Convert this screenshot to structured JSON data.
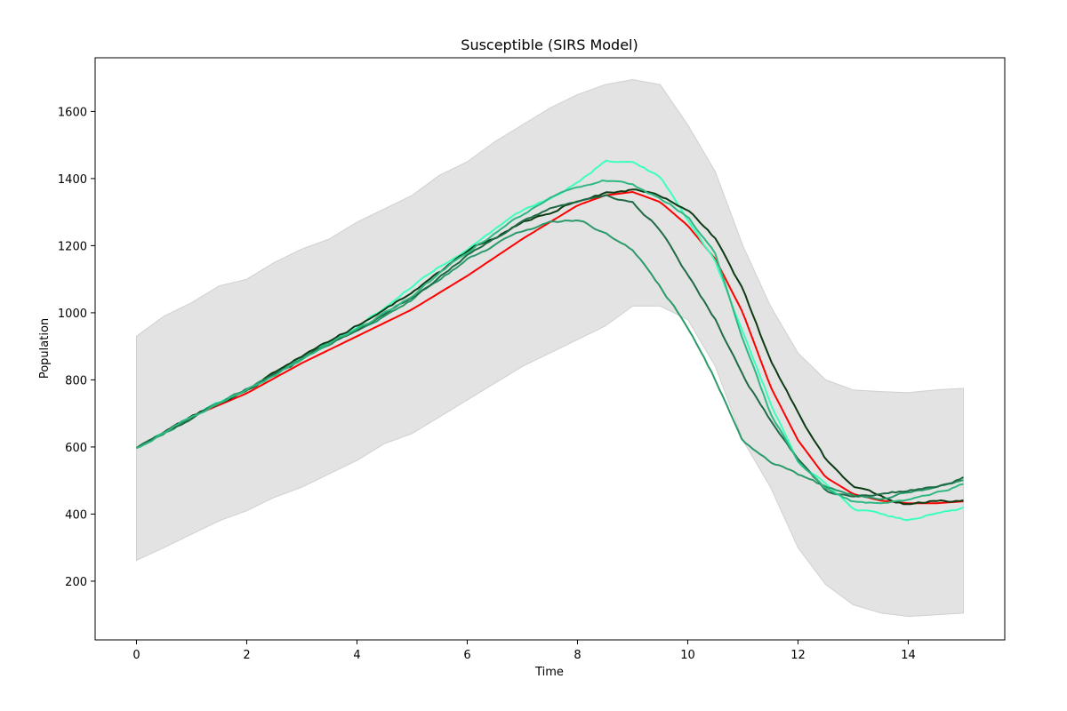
{
  "chart_data": {
    "type": "line",
    "title": "Susceptible (SIRS Model)",
    "xlabel": "Time",
    "ylabel": "Population",
    "xlim": [
      -0.75,
      15.75
    ],
    "ylim": [
      25,
      1760
    ],
    "x_ticks": [
      0,
      2,
      4,
      6,
      8,
      10,
      12,
      14
    ],
    "y_ticks": [
      200,
      400,
      600,
      800,
      1000,
      1200,
      1400,
      1600
    ],
    "grid": false,
    "legend": "none",
    "band": {
      "color": "#e3e3e3",
      "x": [
        0,
        0.5,
        1,
        1.5,
        2,
        2.5,
        3,
        3.5,
        4,
        4.5,
        5,
        5.5,
        6,
        6.5,
        7,
        7.5,
        8,
        8.5,
        9,
        9.5,
        10,
        10.5,
        11,
        11.5,
        12,
        12.5,
        13,
        13.5,
        14,
        14.5,
        15
      ],
      "upper": [
        930,
        990,
        1030,
        1080,
        1100,
        1150,
        1190,
        1220,
        1270,
        1310,
        1350,
        1410,
        1450,
        1510,
        1560,
        1610,
        1650,
        1680,
        1695,
        1680,
        1560,
        1420,
        1200,
        1020,
        880,
        800,
        770,
        765,
        762,
        770,
        775
      ],
      "lower": [
        262,
        300,
        340,
        380,
        410,
        450,
        480,
        520,
        560,
        610,
        640,
        690,
        740,
        790,
        840,
        880,
        920,
        960,
        1020,
        1020,
        980,
        840,
        620,
        480,
        300,
        190,
        130,
        105,
        95,
        100,
        105
      ]
    },
    "series": [
      {
        "color": "#ff0000",
        "x": [
          0,
          1,
          2,
          3,
          4,
          5,
          6,
          7,
          7.5,
          8,
          8.5,
          9,
          9.5,
          10,
          10.5,
          11,
          11.5,
          12,
          12.5,
          13,
          13.5,
          14,
          14.5,
          15
        ],
        "y": [
          597,
          690,
          760,
          850,
          930,
          1010,
          1110,
          1220,
          1270,
          1320,
          1350,
          1360,
          1330,
          1260,
          1160,
          1000,
          780,
          620,
          510,
          460,
          440,
          432,
          432,
          438
        ]
      },
      {
        "color": "#3dffbd",
        "x": [
          0,
          1,
          2,
          3,
          4,
          5,
          6,
          7,
          7.5,
          8,
          8.5,
          9,
          9.5,
          10,
          10.5,
          11,
          11.5,
          12,
          12.5,
          13,
          13.5,
          14,
          14.5,
          15
        ],
        "y": [
          597,
          690,
          770,
          870,
          960,
          1080,
          1190,
          1300,
          1340,
          1390,
          1450,
          1440,
          1400,
          1280,
          1160,
          940,
          730,
          560,
          490,
          420,
          400,
          380,
          400,
          420
        ]
      },
      {
        "color": "#0d3b14",
        "x": [
          0,
          1,
          2,
          3,
          4,
          5,
          6,
          7,
          7.5,
          8,
          8.5,
          9,
          9.5,
          10,
          10.5,
          11,
          11.5,
          12,
          12.5,
          13,
          13.5,
          14,
          14.5,
          15
        ],
        "y": [
          597,
          690,
          770,
          870,
          960,
          1060,
          1180,
          1270,
          1300,
          1340,
          1360,
          1370,
          1350,
          1310,
          1220,
          1070,
          860,
          700,
          560,
          480,
          450,
          430,
          440,
          440
        ]
      },
      {
        "color": "#2a9a6a",
        "x": [
          0,
          1,
          2,
          3,
          4,
          5,
          6,
          7,
          7.5,
          8,
          8.5,
          9,
          9.5,
          10,
          10.5,
          11,
          11.5,
          12,
          12.5,
          13,
          13.5,
          14,
          14.5,
          15
        ],
        "y": [
          597,
          690,
          770,
          860,
          950,
          1040,
          1160,
          1240,
          1270,
          1275,
          1240,
          1190,
          1080,
          960,
          800,
          620,
          560,
          520,
          480,
          460,
          450,
          470,
          480,
          500
        ]
      },
      {
        "color": "#1f6b46",
        "x": [
          0,
          1,
          2,
          3,
          4,
          5,
          6,
          7,
          7.5,
          8,
          8.5,
          9,
          9.5,
          10,
          10.5,
          11,
          11.5,
          12,
          12.5,
          13,
          13.5,
          14,
          14.5,
          15
        ],
        "y": [
          597,
          690,
          770,
          860,
          950,
          1040,
          1170,
          1270,
          1310,
          1330,
          1345,
          1330,
          1250,
          1110,
          980,
          810,
          680,
          560,
          470,
          450,
          460,
          470,
          480,
          510
        ]
      },
      {
        "color": "#2fb882",
        "x": [
          0,
          1,
          2,
          3,
          4,
          5,
          6,
          7,
          7.5,
          8,
          8.5,
          9,
          9.5,
          10,
          10.5,
          11,
          11.5,
          12,
          12.5,
          13,
          13.5,
          14,
          14.5,
          15
        ],
        "y": [
          597,
          690,
          775,
          860,
          950,
          1050,
          1180,
          1290,
          1340,
          1380,
          1395,
          1380,
          1340,
          1290,
          1180,
          920,
          700,
          560,
          480,
          440,
          430,
          440,
          460,
          490
        ]
      }
    ]
  }
}
